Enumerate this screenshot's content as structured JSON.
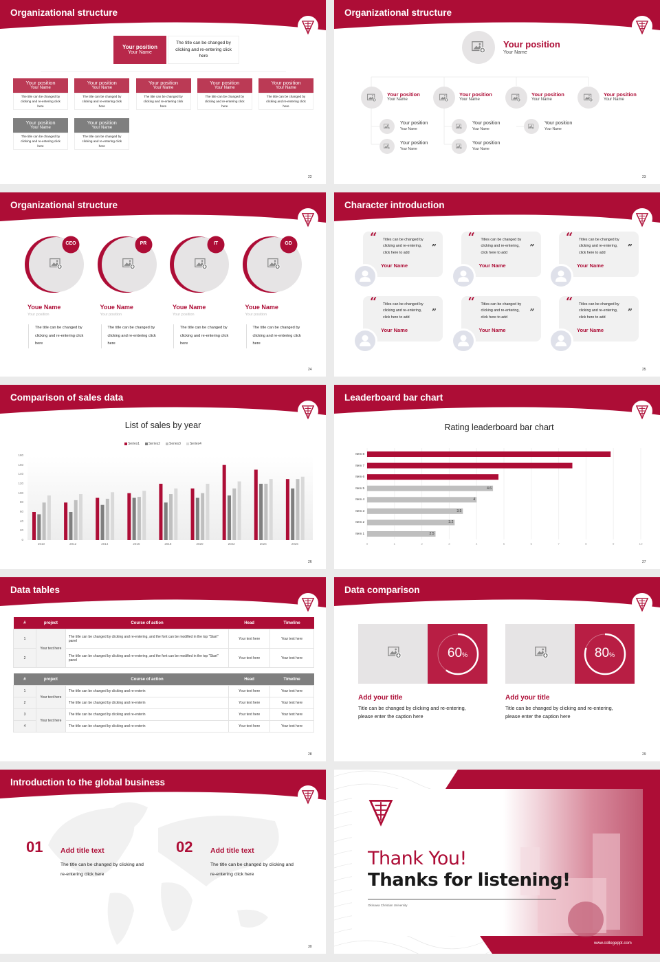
{
  "brand": {
    "primary": "#ad0d36",
    "box_red": "#b8284a",
    "gray": "#7f7f7f",
    "light": "#e6e4e5",
    "background": "#ebebeb"
  },
  "slides": [
    {
      "title": "Organizational structure",
      "page": "22",
      "top": {
        "position": "Your position",
        "name": "Your Name",
        "desc": "The title can be changed by clicking and re-entering click here"
      },
      "boxes": [
        {
          "position": "Your position",
          "name": "Your Name",
          "desc": "The title can be changed by clicking and re-entering click here"
        },
        {
          "position": "Your position",
          "name": "Your Name",
          "desc": "The title can be changed by clicking and re-entering click here"
        },
        {
          "position": "Your position",
          "name": "Your Name",
          "desc": "The title can be changed by clicking and re-entering click here"
        },
        {
          "position": "Your position",
          "name": "Your Name",
          "desc": "The title can be changed by clicking and re-entering click here"
        },
        {
          "position": "Your position",
          "name": "Your Name",
          "desc": "The title can be changed by clicking and re-entering click here"
        }
      ],
      "gray_boxes": [
        {
          "position": "Your position",
          "name": "Your Name",
          "desc": "The title can be changed by clicking and re-entering click here"
        },
        {
          "position": "Your position",
          "name": "Your Name",
          "desc": "The title can be changed by clicking and re-entering click here"
        }
      ]
    },
    {
      "title": "Organizational structure",
      "page": "23",
      "top": {
        "position": "Your position",
        "name": "Your Name"
      },
      "level1": [
        {
          "position": "Your position",
          "name": "Your Name"
        },
        {
          "position": "Your position",
          "name": "Your Name"
        },
        {
          "position": "Your position",
          "name": "Your Name"
        },
        {
          "position": "Your position",
          "name": "Your Name"
        }
      ],
      "level2": [
        [
          {
            "position": "Your position",
            "name": "Your Name"
          },
          {
            "position": "Your position",
            "name": "Your Name"
          }
        ],
        [
          {
            "position": "Your position",
            "name": "Your Name"
          },
          {
            "position": "Your position",
            "name": "Your Name"
          }
        ],
        [
          {
            "position": "Your position",
            "name": "Your Name"
          }
        ]
      ]
    },
    {
      "title": "Organizational structure",
      "page": "24",
      "members": [
        {
          "badge": "CEO",
          "name": "Youe Name",
          "position": "Your position",
          "desc": "The title can be changed by clicking and re-entering click here"
        },
        {
          "badge": "PR",
          "name": "Youe Name",
          "position": "Your position",
          "desc": "The title can be changed by clicking and re-entering click here"
        },
        {
          "badge": "IT",
          "name": "Youe Name",
          "position": "Your position",
          "desc": "The title can be changed by clicking and re-entering click here"
        },
        {
          "badge": "GD",
          "name": "Youe Name",
          "position": "Your position",
          "desc": "The title can be changed by clicking and re-entering click here"
        }
      ]
    },
    {
      "title": "Character introduction",
      "page": "25",
      "quote_open": "“",
      "quote_close": "”",
      "cards": [
        {
          "quote": "Titles can be changed by clicking and re-entering, click here to add",
          "name": "Your Name"
        },
        {
          "quote": "Titles can be changed by clicking and re-entering, click here to add",
          "name": "Your Name"
        },
        {
          "quote": "Titles can be changed by clicking and re-entering, click here to add",
          "name": "Your Name"
        },
        {
          "quote": "Titles can be changed by clicking and re-entering, click here to add",
          "name": "Your Name"
        },
        {
          "quote": "Titles can be changed by clicking and re-entering, click here to add",
          "name": "Your Name"
        },
        {
          "quote": "Titles can be changed by clicking and re-entering, click here to add",
          "name": "Your Name"
        }
      ]
    },
    {
      "title": "Comparison of sales data",
      "page": "26"
    },
    {
      "title": "Leaderboard bar chart",
      "page": "27"
    },
    {
      "title": "Data tables",
      "page": "28",
      "tables": [
        {
          "headers": [
            "#",
            "project",
            "Course of action",
            "Head",
            "Timeline"
          ],
          "groups": [
            {
              "project": "Your text here",
              "rows": [
                {
                  "num": "1",
                  "course": "The title can be changed by clicking and re-entering, and the font can be modified in the top \"Start\" panel",
                  "head": "Your text here",
                  "timeline": "Your text here"
                },
                {
                  "num": "2",
                  "course": "The title can be changed by clicking and re-entering, and the font can be modified in the top \"Start\" panel",
                  "head": "Your text here",
                  "timeline": "Your text here"
                }
              ]
            }
          ]
        },
        {
          "headers": [
            "#",
            "project",
            "Course of action",
            "Head",
            "Timeline"
          ],
          "groups": [
            {
              "project": "Your text here",
              "rows": [
                {
                  "num": "1",
                  "course": "The title can be changed by clicking and re-enterin",
                  "head": "Your text here",
                  "timeline": "Your text here"
                },
                {
                  "num": "2",
                  "course": "The title can be changed by clicking and re-enterin",
                  "head": "Your text here",
                  "timeline": "Your text here"
                }
              ]
            },
            {
              "project": "Your text here",
              "rows": [
                {
                  "num": "3",
                  "course": "The title can be changed by clicking and re-enterin",
                  "head": "Your text here",
                  "timeline": "Your text here"
                },
                {
                  "num": "4",
                  "course": "The title can be changed by clicking and re-enterin",
                  "head": "Your text here",
                  "timeline": "Your text here"
                }
              ]
            }
          ]
        }
      ]
    },
    {
      "title": "Data comparison",
      "page": "29",
      "items": [
        {
          "percent": 60,
          "percent_sign": "%",
          "title": "Add your title",
          "desc": "Title can be changed by clicking and re-entering, please enter the caption here"
        },
        {
          "percent": 80,
          "percent_sign": "%",
          "title": "Add your title",
          "desc": "Title can be changed by clicking and re-entering, please enter the caption here"
        }
      ]
    },
    {
      "title": "Introduction to the global business",
      "page": "30",
      "items": [
        {
          "number": "01",
          "title": "Add title text",
          "desc": "The title can be changed by clicking and re-entering click here"
        },
        {
          "number": "02",
          "title": "Add title text",
          "desc": "The title can be changed by clicking and re-entering click here"
        }
      ]
    },
    {
      "thank": "Thank You!",
      "thanks": "Thanks for listening!",
      "university": "Okinawa Christian University",
      "url": "www.collegeppt.com"
    }
  ],
  "chart_data": [
    {
      "type": "bar",
      "title": "List of sales by year",
      "categories": [
        "2010",
        "2012",
        "2014",
        "2016",
        "2018",
        "2020",
        "2022",
        "2024",
        "2026"
      ],
      "series": [
        {
          "name": "Series1",
          "color": "#ad0d36",
          "values": [
            60,
            80,
            90,
            100,
            120,
            110,
            160,
            150,
            130
          ]
        },
        {
          "name": "Series2",
          "color": "#7f7f7f",
          "values": [
            55,
            60,
            75,
            90,
            80,
            90,
            95,
            120,
            110
          ]
        },
        {
          "name": "Series3",
          "color": "#bfbfbf",
          "values": [
            80,
            85,
            88,
            92,
            98,
            100,
            110,
            120,
            130
          ]
        },
        {
          "name": "Series4",
          "color": "#d9d9d9",
          "values": [
            95,
            98,
            102,
            105,
            110,
            120,
            125,
            130,
            135
          ]
        }
      ],
      "ylim": [
        0,
        180
      ],
      "yticks": [
        0,
        20,
        40,
        60,
        80,
        100,
        120,
        140,
        160,
        180
      ],
      "legend": "top",
      "grid": false
    },
    {
      "type": "bar",
      "orientation": "horizontal",
      "title": "Rating leaderboard bar chart",
      "categories": [
        "Item 1",
        "Item 2",
        "Item 3",
        "Item 4",
        "Item 5",
        "Item 6",
        "Item 7",
        "Item 8"
      ],
      "values": [
        2.5,
        3.2,
        3.5,
        4,
        4.6,
        4.8,
        7.5,
        8.9
      ],
      "data_labels": [
        "2.5",
        "3.2",
        "3.5",
        "4",
        "4.6",
        "",
        "",
        ""
      ],
      "colors": [
        "#bfbfbf",
        "#bfbfbf",
        "#bfbfbf",
        "#bfbfbf",
        "#bfbfbf",
        "#ad0d36",
        "#ad0d36",
        "#ad0d36"
      ],
      "xlim": [
        0,
        10
      ],
      "xticks": [
        "0",
        "1",
        "2",
        "3",
        "4",
        "5",
        "6",
        "7",
        "8",
        "9",
        "10"
      ],
      "grid": true
    }
  ]
}
